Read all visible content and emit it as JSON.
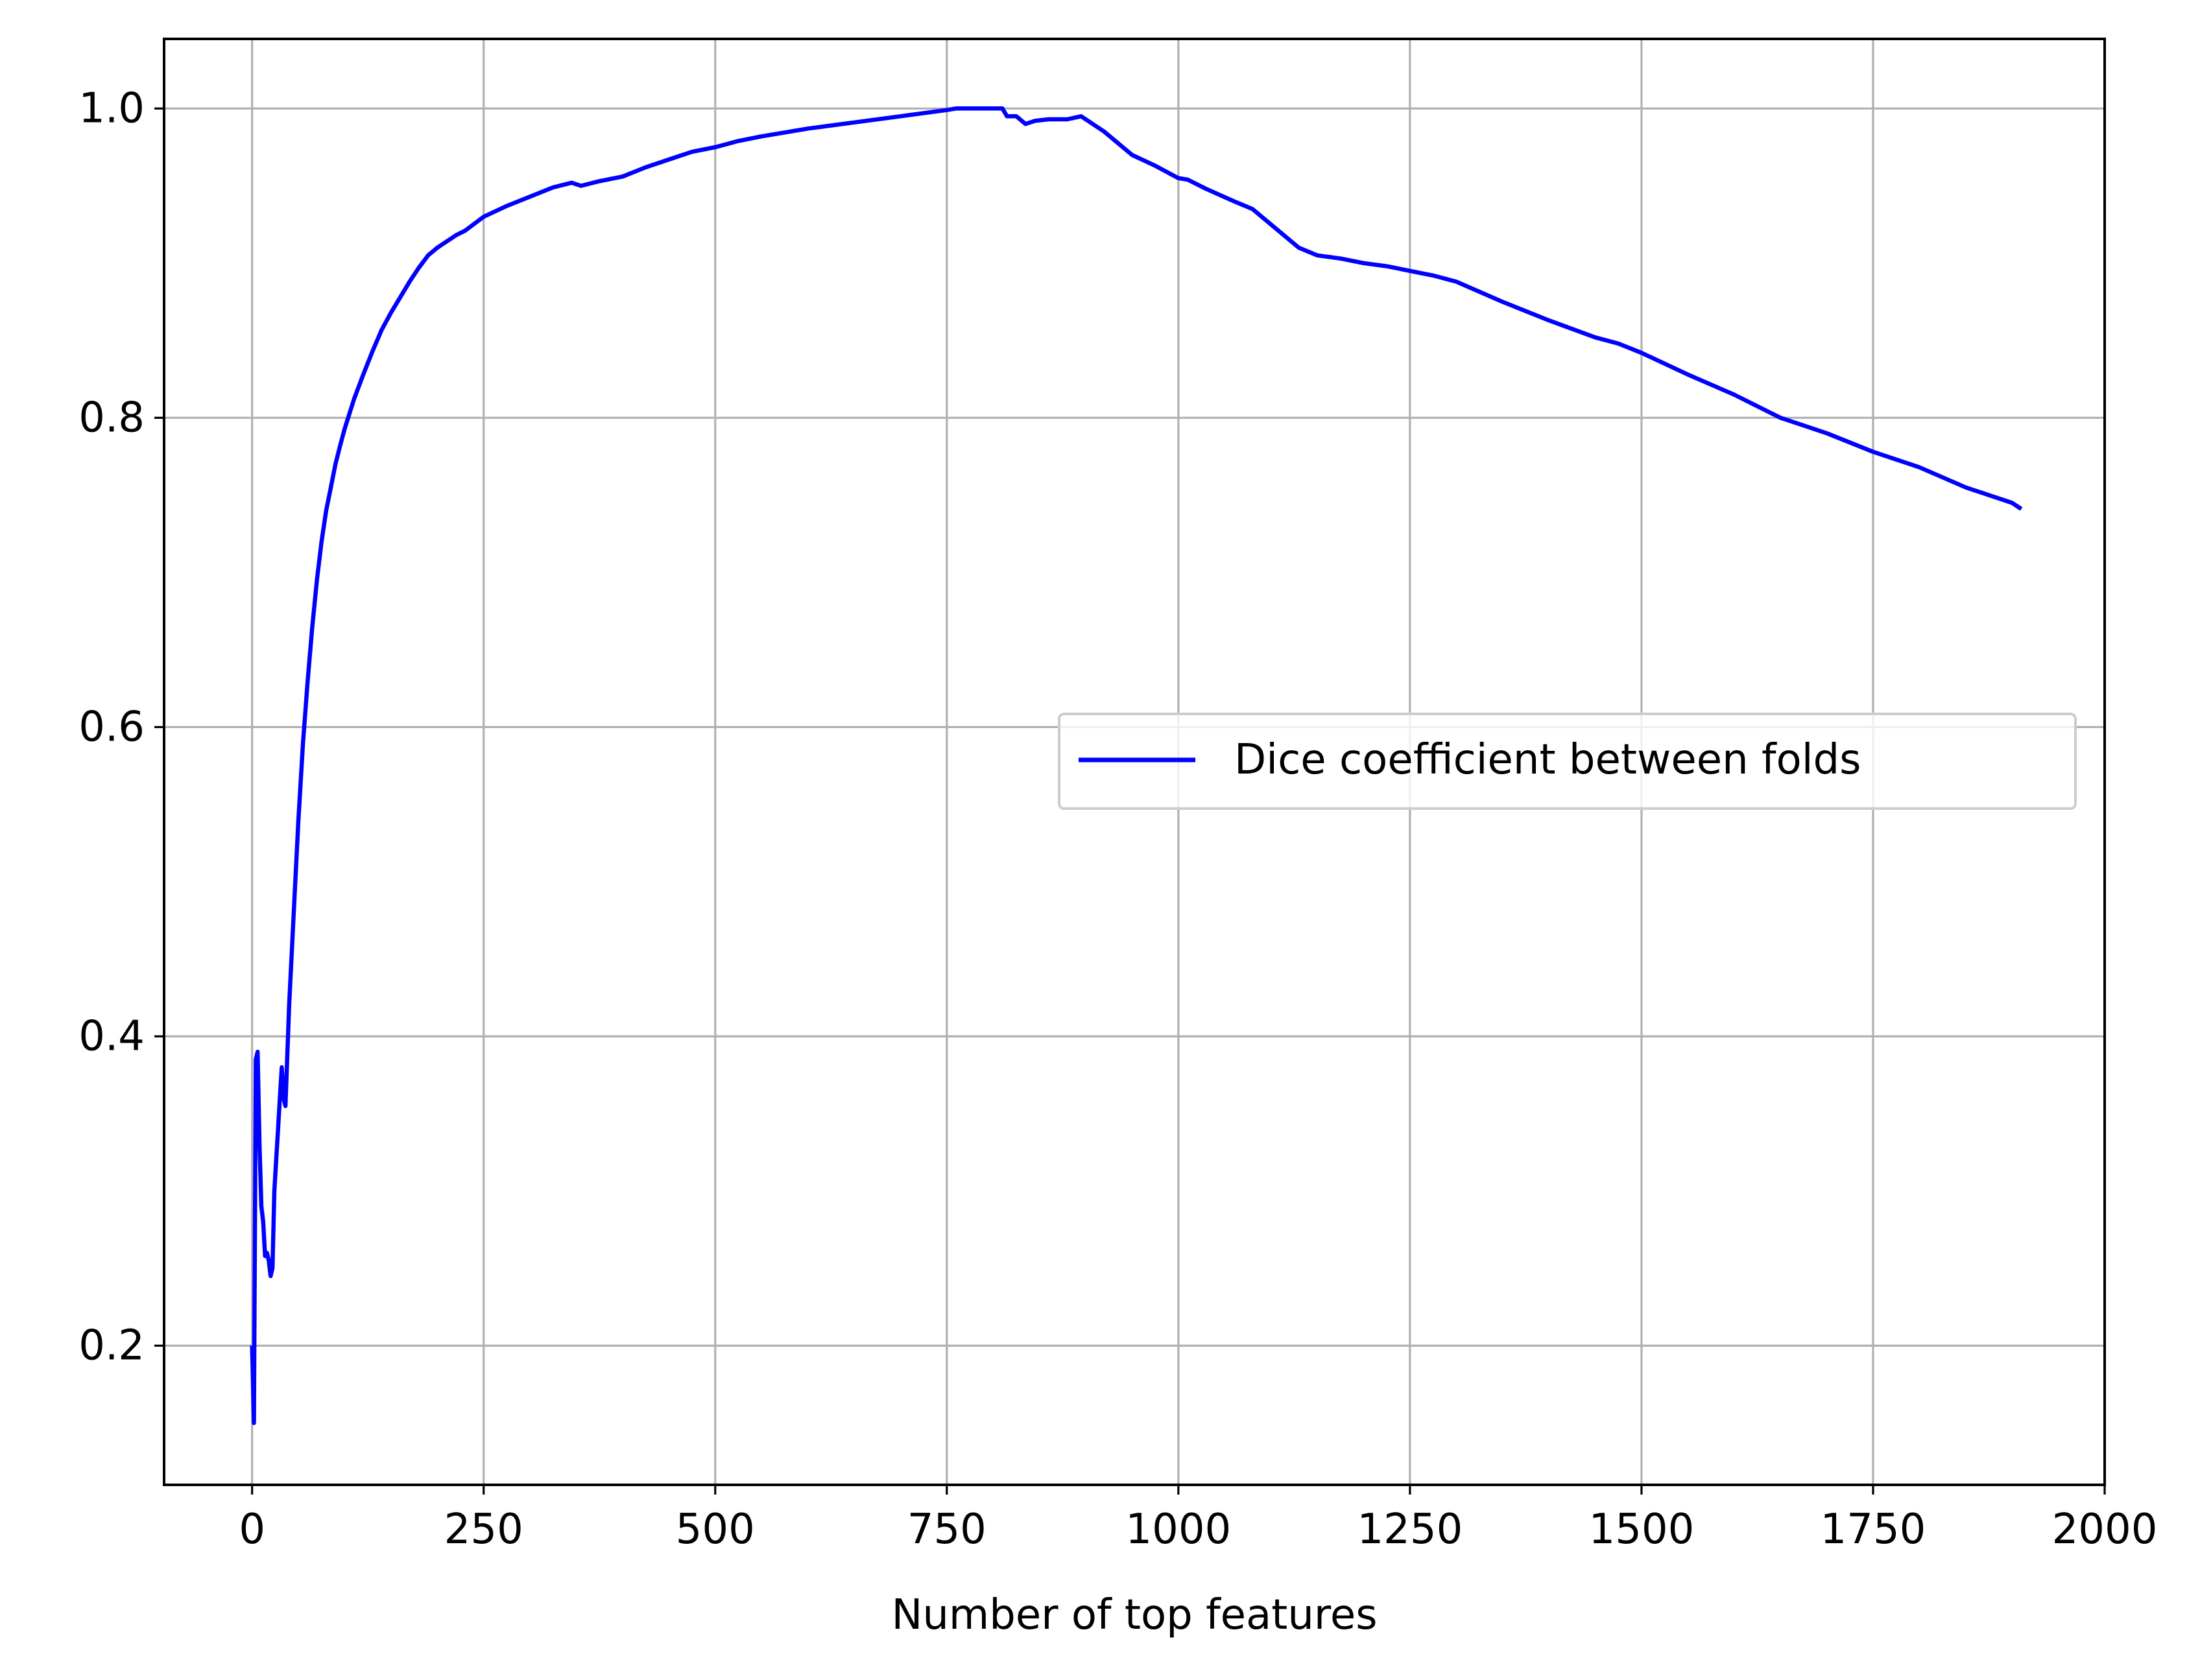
{
  "chart_data": {
    "type": "line",
    "title": "",
    "xlabel": "Number of top features",
    "ylabel": "",
    "xlim": [
      -95,
      2000
    ],
    "ylim": [
      0.11,
      1.045
    ],
    "x_ticks": [
      0,
      250,
      500,
      750,
      1000,
      1250,
      1500,
      1750,
      2000
    ],
    "x_tick_labels": [
      "0",
      "250",
      "500",
      "750",
      "1000",
      "1250",
      "1500",
      "1750",
      "2000"
    ],
    "y_ticks": [
      0.2,
      0.4,
      0.6,
      0.8,
      1.0
    ],
    "y_tick_labels": [
      "0.2",
      "0.4",
      "0.6",
      "0.8",
      "1.0"
    ],
    "grid": true,
    "legend_position": "center-right",
    "series": [
      {
        "name": "Dice coefficient between folds",
        "color": "#0000ff",
        "x": [
          0,
          2,
          4,
          6,
          8,
          10,
          12,
          14,
          16,
          18,
          20,
          22,
          24,
          26,
          28,
          30,
          32,
          34,
          36,
          40,
          45,
          50,
          55,
          60,
          65,
          70,
          75,
          80,
          85,
          90,
          95,
          100,
          110,
          120,
          130,
          140,
          150,
          160,
          170,
          180,
          190,
          200,
          210,
          220,
          230,
          250,
          275,
          300,
          325,
          345,
          350,
          355,
          375,
          400,
          425,
          450,
          475,
          500,
          525,
          550,
          600,
          650,
          700,
          750,
          760,
          775,
          790,
          810,
          815,
          825,
          835,
          845,
          860,
          880,
          895,
          905,
          920,
          950,
          975,
          1000,
          1010,
          1030,
          1060,
          1080,
          1100,
          1130,
          1150,
          1175,
          1200,
          1225,
          1250,
          1275,
          1300,
          1350,
          1400,
          1450,
          1475,
          1500,
          1550,
          1600,
          1650,
          1700,
          1750,
          1800,
          1850,
          1900,
          1910
        ],
        "values": [
          0.2,
          0.15,
          0.385,
          0.39,
          0.33,
          0.29,
          0.28,
          0.258,
          0.26,
          0.255,
          0.245,
          0.25,
          0.3,
          0.32,
          0.34,
          0.36,
          0.38,
          0.36,
          0.355,
          0.42,
          0.48,
          0.54,
          0.59,
          0.63,
          0.665,
          0.695,
          0.72,
          0.74,
          0.755,
          0.77,
          0.782,
          0.793,
          0.812,
          0.828,
          0.843,
          0.857,
          0.868,
          0.878,
          0.888,
          0.897,
          0.905,
          0.91,
          0.914,
          0.918,
          0.921,
          0.93,
          0.937,
          0.943,
          0.949,
          0.952,
          0.951,
          0.95,
          0.953,
          0.956,
          0.962,
          0.967,
          0.972,
          0.975,
          0.979,
          0.982,
          0.987,
          0.991,
          0.995,
          0.999,
          1.0,
          1.0,
          1.0,
          1.0,
          0.995,
          0.995,
          0.99,
          0.992,
          0.993,
          0.993,
          0.995,
          0.991,
          0.985,
          0.97,
          0.963,
          0.955,
          0.954,
          0.948,
          0.94,
          0.935,
          0.925,
          0.91,
          0.905,
          0.903,
          0.9,
          0.898,
          0.895,
          0.892,
          0.888,
          0.875,
          0.863,
          0.852,
          0.848,
          0.842,
          0.828,
          0.815,
          0.8,
          0.79,
          0.778,
          0.768,
          0.755,
          0.745,
          0.741
        ]
      }
    ]
  }
}
